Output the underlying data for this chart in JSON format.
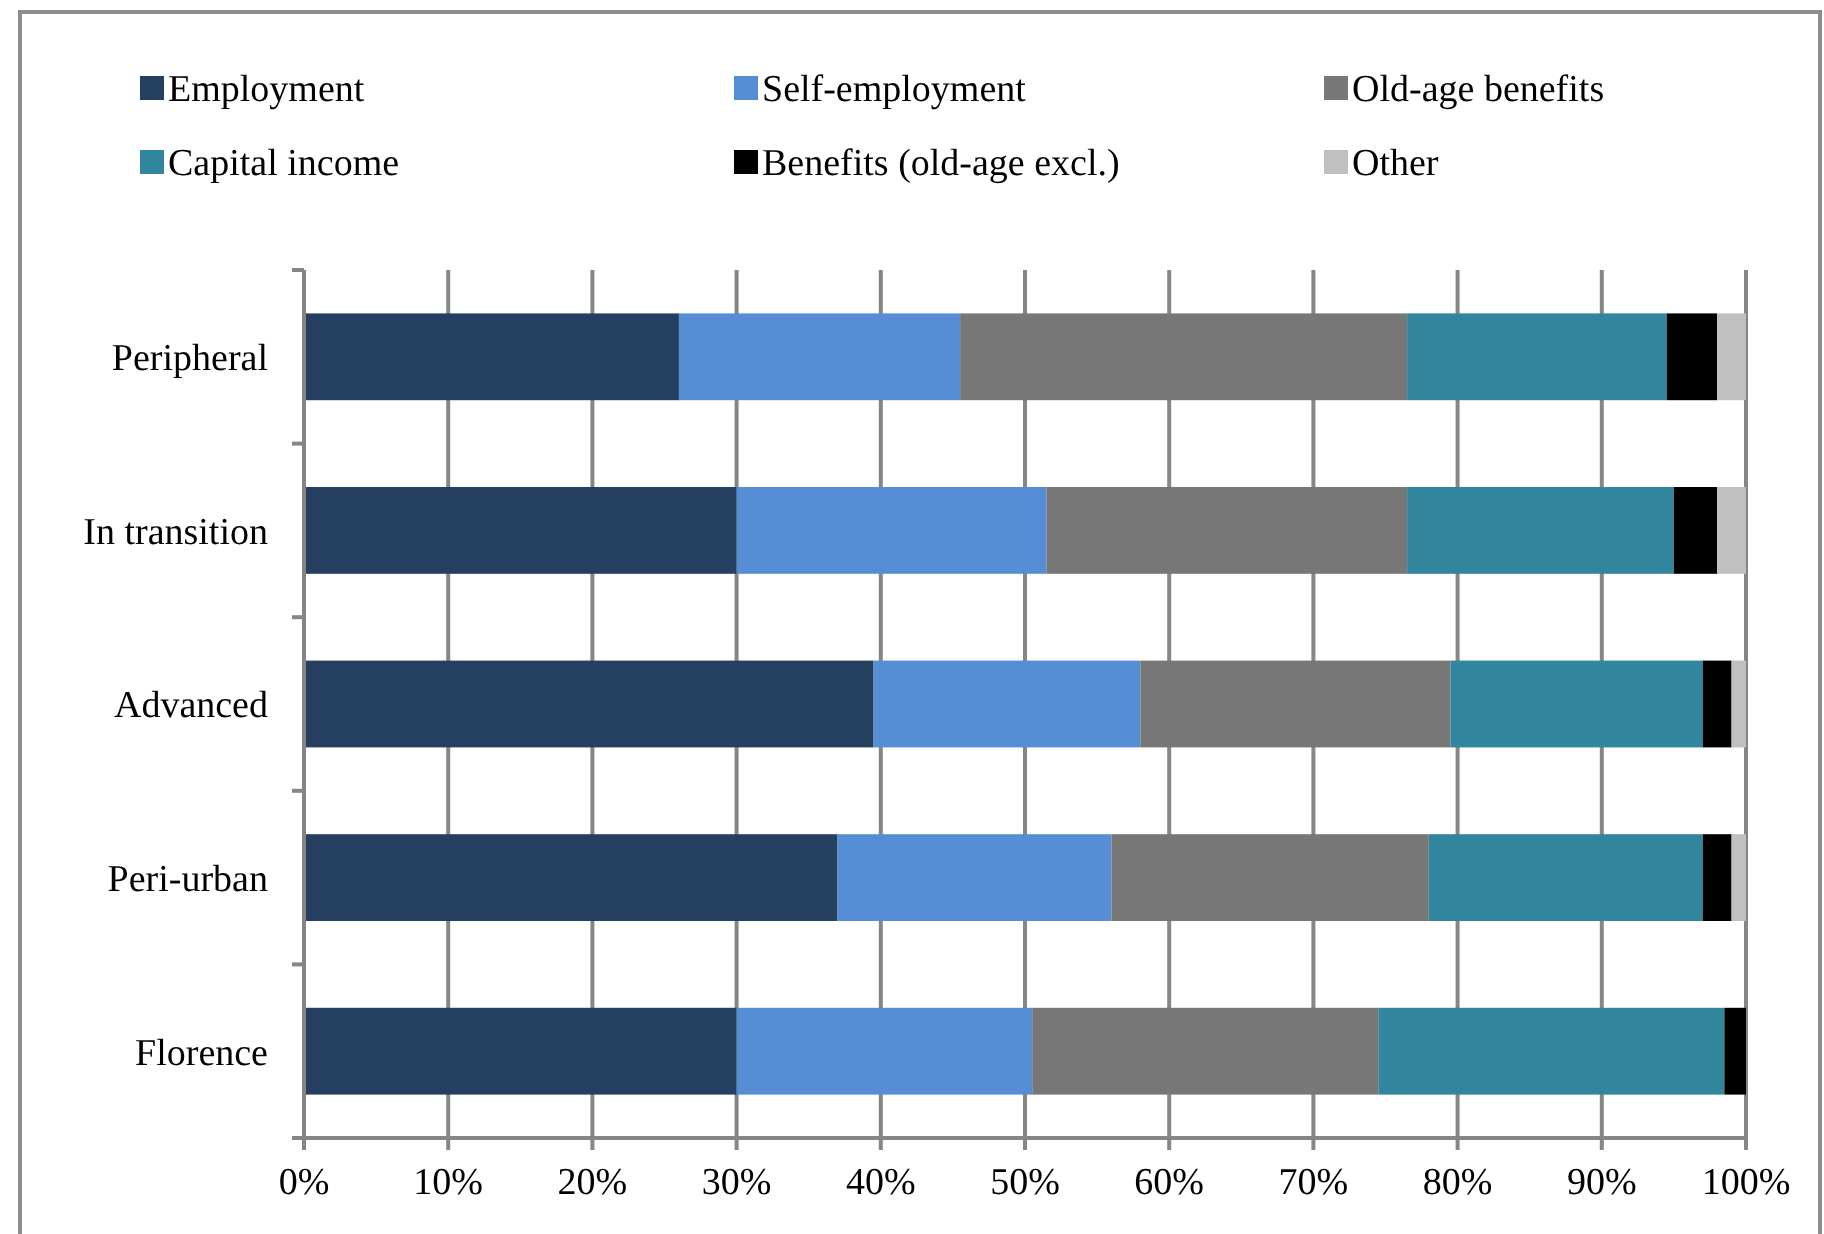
{
  "chart_data": {
    "type": "bar",
    "orientation": "horizontal",
    "stacked": true,
    "categories": [
      "Peripheral",
      "In transition",
      "Advanced",
      "Peri-urban",
      "Florence"
    ],
    "series": [
      {
        "name": "Employment",
        "color": "#243f60",
        "values": [
          26,
          30,
          39.5,
          37,
          30
        ]
      },
      {
        "name": "Self-employment",
        "color": "#558ed5",
        "values": [
          19.5,
          21.5,
          18.5,
          19,
          20.5
        ]
      },
      {
        "name": "Old-age benefits",
        "color": "#777777",
        "values": [
          31,
          25,
          21.5,
          22,
          24
        ]
      },
      {
        "name": "Capital income",
        "color": "#31859c",
        "values": [
          18,
          18.5,
          17.5,
          19,
          24
        ]
      },
      {
        "name": "Benefits (old-age excl.)",
        "color": "#000000",
        "values": [
          3.5,
          3,
          2,
          2,
          1.5
        ]
      },
      {
        "name": "Other",
        "color": "#c0c0c0",
        "values": [
          2,
          2,
          1,
          1,
          0
        ]
      }
    ],
    "xlim": [
      0,
      100
    ],
    "xticks": [
      {
        "value": 0,
        "label": "0%"
      },
      {
        "value": 10,
        "label": "10%"
      },
      {
        "value": 20,
        "label": "20%"
      },
      {
        "value": 30,
        "label": "30%"
      },
      {
        "value": 40,
        "label": "40%"
      },
      {
        "value": 50,
        "label": "50%"
      },
      {
        "value": 60,
        "label": "60%"
      },
      {
        "value": 70,
        "label": "70%"
      },
      {
        "value": 80,
        "label": "80%"
      },
      {
        "value": 90,
        "label": "90%"
      },
      {
        "value": 100,
        "label": "100%"
      }
    ],
    "grid": "x",
    "legend": "top"
  }
}
